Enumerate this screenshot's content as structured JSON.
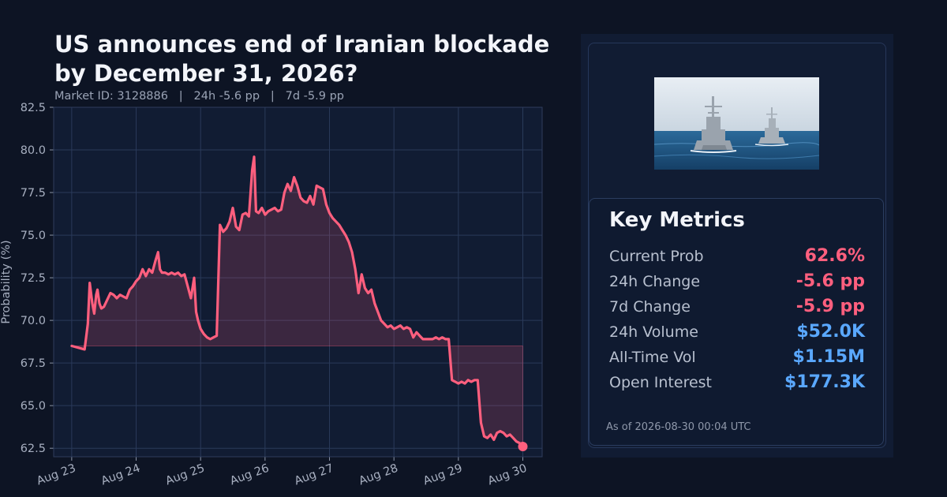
{
  "header": {
    "title_line1": "US announces end of Iranian blockade",
    "title_line2": "by December 31, 2026?",
    "market_id": "Market ID: 3128886",
    "change_24h": "24h -5.6 pp",
    "change_7d": "7d -5.9 pp",
    "separator": "|"
  },
  "colors": {
    "background": "#0d1424",
    "plot_background": "#111c33",
    "line": "#ff5f7e",
    "grid": "#2a3a5a",
    "negative": "#ff5f7e",
    "positive_blue": "#5aa8ff"
  },
  "chart_data": {
    "type": "line",
    "title": "",
    "xlabel": "",
    "ylabel": "Probability (%)",
    "ylim": [
      62.0,
      82.5
    ],
    "xlim": [
      -0.28,
      7.3
    ],
    "yticks": [
      "62.5",
      "65.0",
      "67.5",
      "70.0",
      "72.5",
      "75.0",
      "77.5",
      "80.0",
      "82.5"
    ],
    "xticks": [
      "Aug 23",
      "Aug 24",
      "Aug 25",
      "Aug 26",
      "Aug 27",
      "Aug 28",
      "Aug 29",
      "Aug 30"
    ],
    "baseline": 68.5,
    "grid": true,
    "legend": "none",
    "series": [
      {
        "x": [
          0.0,
          0.1,
          0.2,
          0.25,
          0.28,
          0.32,
          0.35,
          0.38,
          0.4,
          0.43,
          0.46,
          0.5,
          0.55,
          0.6,
          0.65,
          0.7,
          0.75,
          0.8,
          0.85,
          0.9,
          0.95,
          1.0,
          1.05,
          1.1,
          1.15,
          1.2,
          1.25,
          1.3,
          1.34,
          1.37,
          1.4,
          1.45,
          1.5,
          1.55,
          1.6,
          1.65,
          1.7,
          1.75,
          1.8,
          1.85,
          1.9,
          1.93,
          1.96,
          2.0,
          2.05,
          2.1,
          2.15,
          2.2,
          2.25,
          2.3,
          2.35,
          2.4,
          2.45,
          2.5,
          2.55,
          2.6,
          2.65,
          2.7,
          2.75,
          2.8,
          2.83,
          2.86,
          2.9,
          2.95,
          3.0,
          3.05,
          3.1,
          3.15,
          3.2,
          3.25,
          3.3,
          3.35,
          3.4,
          3.45,
          3.5,
          3.55,
          3.6,
          3.65,
          3.7,
          3.75,
          3.8,
          3.85,
          3.9,
          3.95,
          4.0,
          4.05,
          4.1,
          4.15,
          4.2,
          4.25,
          4.3,
          4.35,
          4.4,
          4.45,
          4.5,
          4.55,
          4.6,
          4.65,
          4.7,
          4.75,
          4.8,
          4.85,
          4.9,
          4.95,
          5.0,
          5.05,
          5.1,
          5.15,
          5.2,
          5.25,
          5.3,
          5.35,
          5.4,
          5.45,
          5.5,
          5.55,
          5.6,
          5.65,
          5.7,
          5.75,
          5.8,
          5.85,
          5.9,
          5.95,
          6.0,
          6.05,
          6.1,
          6.15,
          6.2,
          6.25,
          6.3,
          6.35,
          6.4,
          6.45,
          6.5,
          6.55,
          6.6,
          6.65,
          6.7,
          6.75,
          6.8,
          6.85,
          6.9,
          6.95,
          7.0
        ],
        "values": [
          68.5,
          68.4,
          68.3,
          69.8,
          72.2,
          71.0,
          70.4,
          71.5,
          71.8,
          71.0,
          70.7,
          70.8,
          71.2,
          71.6,
          71.5,
          71.3,
          71.5,
          71.4,
          71.3,
          71.8,
          72.0,
          72.3,
          72.5,
          73.0,
          72.6,
          73.0,
          72.8,
          73.5,
          74.0,
          73.0,
          72.8,
          72.8,
          72.7,
          72.8,
          72.7,
          72.8,
          72.6,
          72.7,
          72.0,
          71.3,
          72.5,
          70.5,
          70.0,
          69.5,
          69.2,
          69.0,
          68.9,
          69.0,
          69.1,
          75.6,
          75.2,
          75.4,
          75.8,
          76.6,
          75.5,
          75.3,
          76.2,
          76.3,
          76.1,
          78.8,
          79.6,
          76.4,
          76.3,
          76.6,
          76.2,
          76.4,
          76.5,
          76.6,
          76.4,
          76.5,
          77.5,
          78.0,
          77.6,
          78.4,
          77.9,
          77.2,
          77.0,
          76.9,
          77.3,
          76.8,
          77.9,
          77.8,
          77.7,
          76.8,
          76.3,
          76.0,
          75.8,
          75.6,
          75.3,
          75.0,
          74.6,
          74.0,
          73.0,
          71.6,
          72.7,
          71.9,
          71.6,
          71.8,
          71.0,
          70.5,
          70.0,
          69.8,
          69.6,
          69.7,
          69.5,
          69.6,
          69.7,
          69.5,
          69.6,
          69.5,
          69.0,
          69.3,
          69.1,
          68.9,
          68.9,
          68.9,
          68.9,
          69.0,
          68.9,
          69.0,
          68.9,
          68.9,
          66.5,
          66.4,
          66.3,
          66.4,
          66.3,
          66.5,
          66.4,
          66.5,
          66.5,
          64.0,
          63.2,
          63.1,
          63.3,
          63.0,
          63.4,
          63.5,
          63.4,
          63.2,
          63.3,
          63.1,
          62.9,
          62.8,
          62.6
        ],
        "last_value": 62.6
      }
    ]
  },
  "image": {
    "description_icon": "warship-photo-icon"
  },
  "metrics": {
    "title": "Key Metrics",
    "rows": [
      {
        "label": "Current Prob",
        "value": "62.6%",
        "color": "#ff5f7e"
      },
      {
        "label": "24h Change",
        "value": "-5.6 pp",
        "color": "#ff5f7e"
      },
      {
        "label": "7d Change",
        "value": "-5.9 pp",
        "color": "#ff5f7e"
      },
      {
        "label": "24h Volume",
        "value": "$52.0K",
        "color": "#5aa8ff"
      },
      {
        "label": "All-Time Vol",
        "value": "$1.15M",
        "color": "#5aa8ff"
      },
      {
        "label": "Open Interest",
        "value": "$177.3K",
        "color": "#5aa8ff"
      }
    ],
    "as_of": "As of 2026-08-30 00:04 UTC"
  }
}
